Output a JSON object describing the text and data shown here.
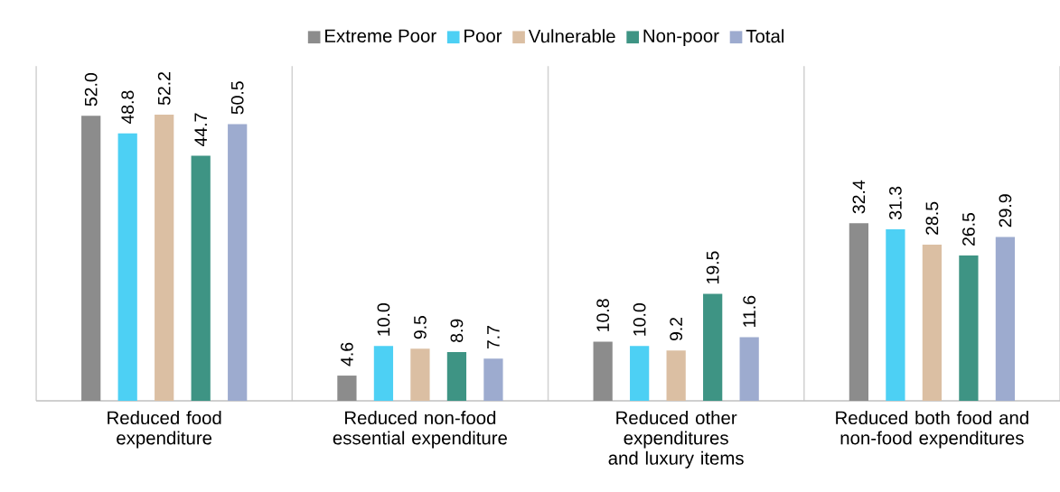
{
  "chart_data": {
    "type": "bar",
    "categories": [
      "Reduced food expenditure",
      "Reduced non-food essential expenditure",
      "Reduced other expenditures and luxury items",
      "Reduced both food and non-food expenditures"
    ],
    "series": [
      {
        "name": "Extreme Poor",
        "color": "#8c8c8c",
        "values": [
          52.0,
          4.6,
          10.8,
          32.4
        ],
        "value_labels": [
          "52.0",
          "4.6",
          "10.8",
          "32.4"
        ]
      },
      {
        "name": "Poor",
        "color": "#4dd0f4",
        "values": [
          48.8,
          10.0,
          10.0,
          31.3
        ],
        "value_labels": [
          "48.8",
          "10.0",
          "10.0",
          "31.3"
        ]
      },
      {
        "name": "Vulnerable",
        "color": "#dbbfa3",
        "values": [
          52.2,
          9.5,
          9.2,
          28.5
        ],
        "value_labels": [
          "52.2",
          "9.5",
          "9.2",
          "28.5"
        ]
      },
      {
        "name": "Non-poor",
        "color": "#3e9484",
        "values": [
          44.7,
          8.9,
          19.5,
          26.5
        ],
        "value_labels": [
          "44.7",
          "8.9",
          "19.5",
          "26.5"
        ]
      },
      {
        "name": "Total",
        "color": "#9dabcf",
        "values": [
          50.5,
          7.7,
          11.6,
          29.9
        ],
        "value_labels": [
          "50.5",
          "7.7",
          "11.6",
          "29.9"
        ]
      }
    ],
    "grid": "x",
    "legend": "top"
  }
}
